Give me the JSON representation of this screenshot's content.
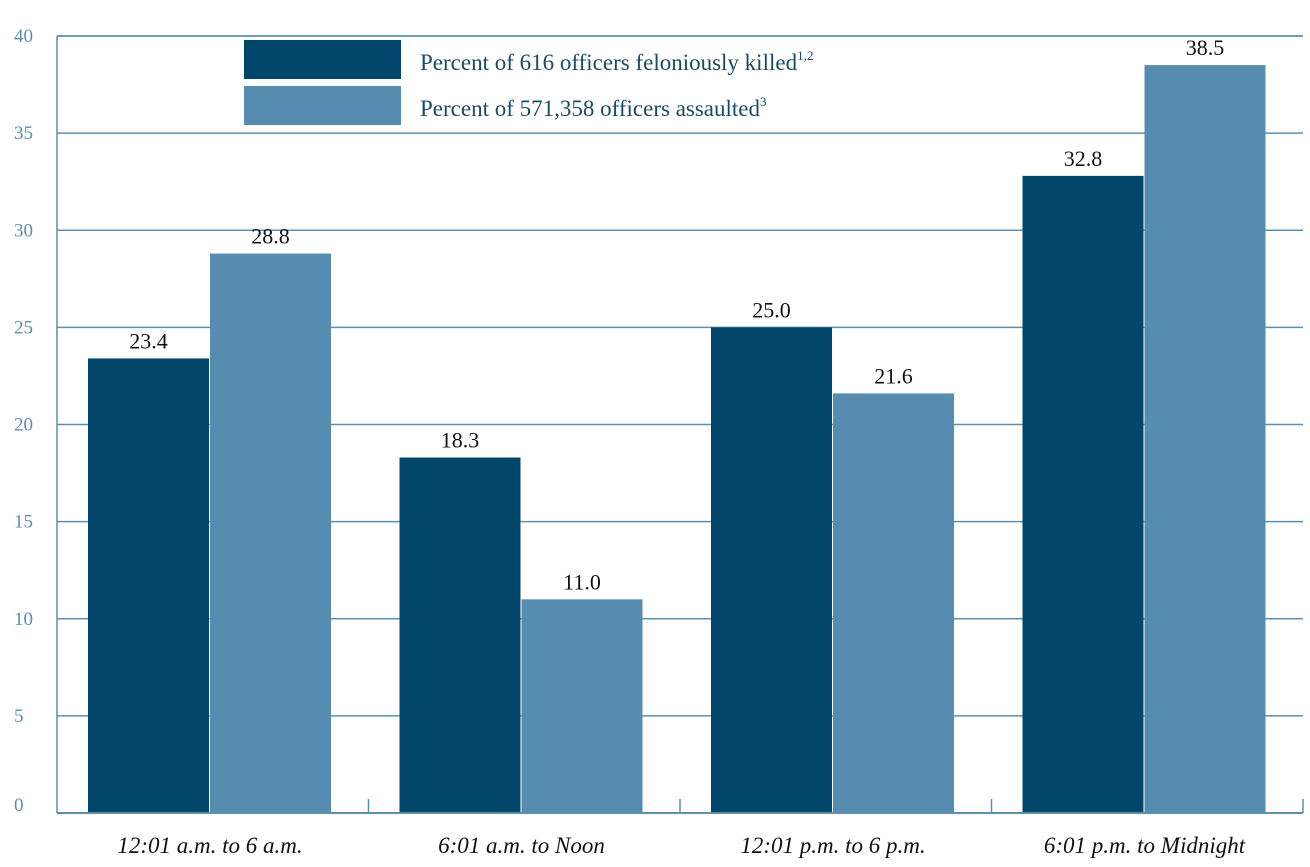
{
  "chart_data": {
    "type": "bar",
    "categories": [
      "12:01 a.m. to 6 a.m.",
      "6:01 a.m. to Noon",
      "12:01 p.m. to 6 p.m.",
      "6:01 p.m. to Midnight"
    ],
    "series": [
      {
        "name": "Percent of 616 officers feloniously killed",
        "name_sup": "1,2",
        "values": [
          23.4,
          18.3,
          25.0,
          32.8
        ],
        "value_labels": [
          "23.4",
          "18.3",
          "25.0",
          "32.8"
        ],
        "color": "#00456a"
      },
      {
        "name": "Percent of 571,358 officers assaulted",
        "name_sup": "3",
        "values": [
          28.8,
          11.0,
          21.6,
          38.5
        ],
        "value_labels": [
          "28.8",
          "11.0",
          "21.6",
          "38.5"
        ],
        "color": "#568cb0"
      }
    ],
    "yticks": [
      0,
      5,
      10,
      15,
      20,
      25,
      30,
      35,
      40
    ],
    "ylim": [
      0,
      40
    ],
    "grid": true,
    "legend_position": "top-center",
    "axis_color": "#5b8fb0"
  }
}
